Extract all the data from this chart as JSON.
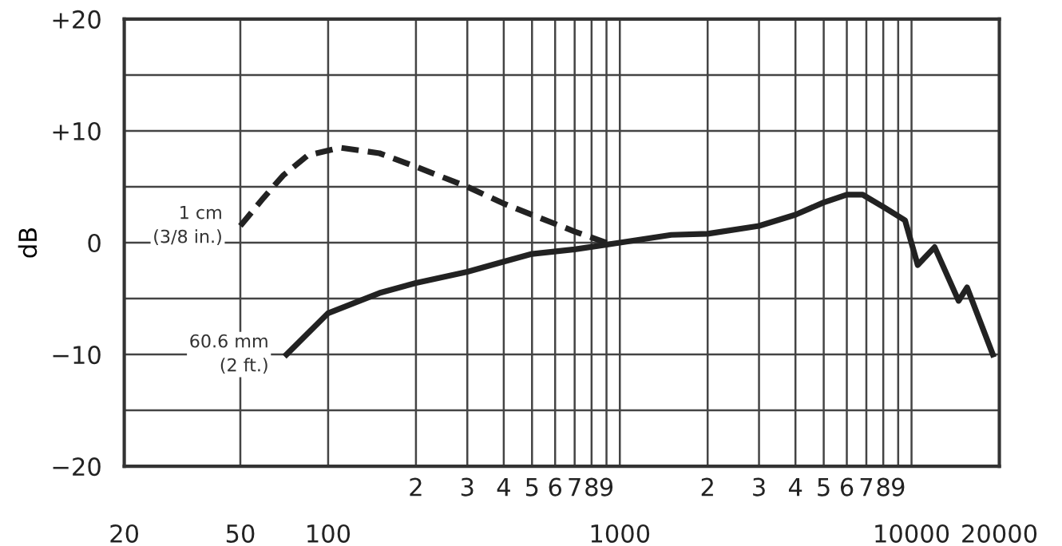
{
  "chart_data": {
    "type": "line",
    "ylabel": "dB",
    "log": "x",
    "grid": true,
    "marker": "none",
    "xlim": [
      20,
      20000
    ],
    "xticks": [
      20,
      50,
      100,
      {
        "value": 200,
        "label": null
      },
      {
        "value": 300,
        "label": null
      },
      {
        "value": 400,
        "label": null
      },
      {
        "value": 500,
        "label": null
      },
      {
        "value": 600,
        "label": null
      },
      {
        "value": 700,
        "label": null
      },
      {
        "value": 800,
        "label": null
      },
      {
        "value": 900,
        "label": null
      },
      1000,
      {
        "value": 2000,
        "label": null
      },
      {
        "value": 3000,
        "label": null
      },
      {
        "value": 4000,
        "label": null
      },
      {
        "value": 5000,
        "label": null
      },
      {
        "value": 6000,
        "label": null
      },
      {
        "value": 7000,
        "label": null
      },
      {
        "value": 8000,
        "label": null
      },
      {
        "value": 9000,
        "label": null
      },
      10000,
      20000
    ],
    "ylim": [
      -20,
      20
    ],
    "yticks": [
      {
        "value": -20,
        "label": "−20"
      },
      {
        "value": -15,
        "label": null
      },
      {
        "value": -10,
        "label": "−10"
      },
      {
        "value": -5,
        "label": null
      },
      0,
      {
        "value": 5,
        "label": null
      },
      {
        "value": 10,
        "label": "+10"
      },
      {
        "value": 15,
        "label": null
      },
      {
        "value": 20,
        "label": "+20"
      }
    ],
    "annotations": [
      "2",
      "3",
      "4",
      "5",
      "6",
      "7",
      "8",
      "9",
      "2",
      "3",
      "4",
      "5",
      "6",
      "7",
      "8",
      "9"
    ],
    "series": [
      {
        "name": "1 cm\n(3/8 in.)",
        "color": "#222222",
        "line_style": "dashed",
        "x": [
          50,
          60,
          70,
          85,
          110,
          150,
          200,
          300,
          400,
          500,
          700,
          900
        ],
        "values": [
          1.5,
          4,
          6,
          7.8,
          8.5,
          8,
          6.8,
          5,
          3.5,
          2.5,
          1,
          0
        ]
      },
      {
        "name": "60.6 mm\n(2 ft.)",
        "color": "#222222",
        "line_style": "solid",
        "x": [
          72,
          100,
          150,
          200,
          300,
          400,
          500,
          700,
          1000,
          1500,
          2000,
          3000,
          4000,
          5000,
          6000,
          6800,
          8000,
          9500,
          10500,
          12000,
          14500,
          15500,
          19000
        ],
        "values": [
          -10,
          -6.3,
          -4.5,
          -3.6,
          -2.6,
          -1.7,
          -1,
          -0.6,
          0,
          0.7,
          0.8,
          1.5,
          2.5,
          3.6,
          4.3,
          4.3,
          3.2,
          2,
          -2,
          -0.4,
          -5.2,
          -4,
          -10
        ]
      }
    ]
  }
}
